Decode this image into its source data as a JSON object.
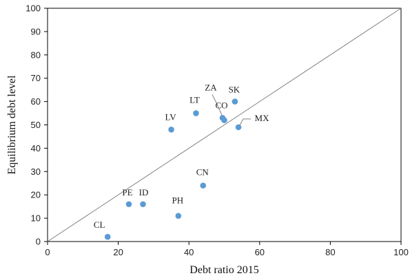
{
  "chart_data": {
    "type": "scatter",
    "xlabel": "Debt ratio 2015",
    "ylabel": "Equilibrium  debt level",
    "xlim": [
      0,
      100
    ],
    "ylim": [
      0,
      100
    ],
    "x_ticks": [
      0,
      20,
      40,
      60,
      80,
      100
    ],
    "y_ticks": [
      0,
      10,
      20,
      30,
      40,
      50,
      60,
      70,
      80,
      90,
      100
    ],
    "grid": false,
    "reference_line": {
      "type": "45-degree",
      "from": [
        0,
        0
      ],
      "to": [
        100,
        100
      ]
    },
    "colors": {
      "marker": "#5b9bd5",
      "axis": "#000000",
      "reference_line": "#808080",
      "leader_line": "#808080"
    },
    "series": [
      {
        "points": [
          {
            "label": "CL",
            "x": 17,
            "y": 2
          },
          {
            "label": "PE",
            "x": 23,
            "y": 16
          },
          {
            "label": "ID",
            "x": 27,
            "y": 16
          },
          {
            "label": "PH",
            "x": 37,
            "y": 11
          },
          {
            "label": "LV",
            "x": 35,
            "y": 48
          },
          {
            "label": "LT",
            "x": 42,
            "y": 55
          },
          {
            "label": "CN",
            "x": 44,
            "y": 24
          },
          {
            "label": "ZA",
            "x": 49.5,
            "y": 53
          },
          {
            "label": "CO",
            "x": 50,
            "y": 52
          },
          {
            "label": "SK",
            "x": 53,
            "y": 60
          },
          {
            "label": "MX",
            "x": 54,
            "y": 49
          }
        ]
      }
    ]
  }
}
